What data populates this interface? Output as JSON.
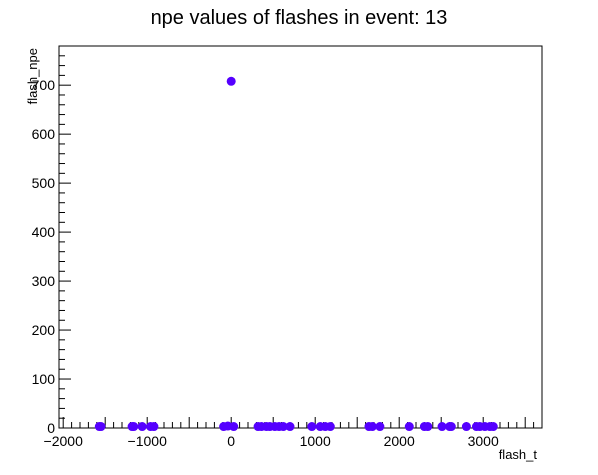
{
  "chart_data": {
    "type": "scatter",
    "title": "npe values of flashes in event: 13",
    "xlabel": "flash_t",
    "ylabel": "flash_npe",
    "xlim": [
      -2050,
      3700
    ],
    "ylim": [
      0,
      780
    ],
    "x_ticks": [
      -2000,
      -1000,
      0,
      1000,
      2000,
      3000
    ],
    "x_tick_labels": [
      "−2000",
      "−1000",
      "0",
      "1000",
      "2000",
      "3000"
    ],
    "y_ticks": [
      0,
      100,
      200,
      300,
      400,
      500,
      600,
      700
    ],
    "y_tick_labels": [
      "0",
      "100",
      "200",
      "300",
      "400",
      "500",
      "600",
      "700"
    ],
    "grid": false,
    "marker_color": "#5500ff",
    "x": [
      -1570,
      -1550,
      -1180,
      -1160,
      -1060,
      -960,
      -920,
      -90,
      -40,
      0,
      30,
      320,
      360,
      420,
      460,
      520,
      570,
      620,
      700,
      960,
      1060,
      1120,
      1180,
      1640,
      1680,
      1770,
      2120,
      2300,
      2340,
      2510,
      2600,
      2620,
      2800,
      2920,
      2960,
      3020,
      3080,
      3120
    ],
    "y": [
      3,
      3,
      3,
      3,
      3,
      3,
      3,
      3,
      4,
      708,
      3,
      3,
      3,
      3,
      3,
      3,
      3,
      3,
      3,
      3,
      3,
      3,
      3,
      3,
      3,
      3,
      3,
      3,
      3,
      3,
      3,
      3,
      3,
      3,
      3,
      3,
      3,
      3
    ]
  }
}
